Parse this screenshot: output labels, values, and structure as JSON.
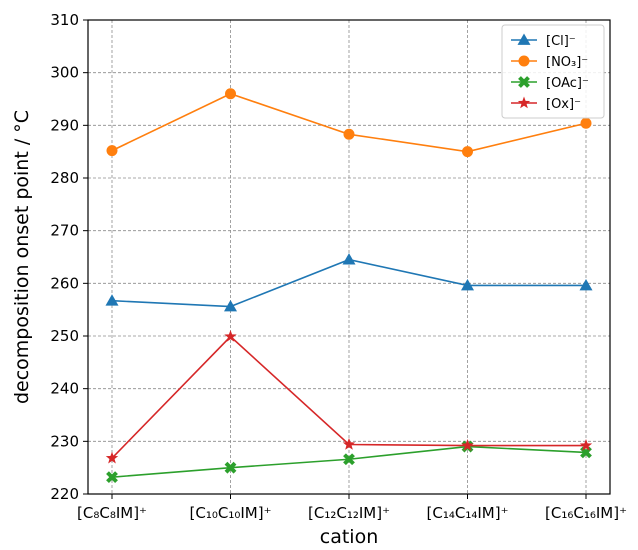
{
  "chart_data": {
    "type": "line",
    "xlabel": "cation",
    "ylabel": "decomposition onset point / °C",
    "categories": [
      "[C₈C₈IM]⁺",
      "[C₁₀C₁₀IM]⁺",
      "[C₁₂C₁₂IM]⁺",
      "[C₁₄C₁₄IM]⁺",
      "[C₁₆C₁₆IM]⁺"
    ],
    "ylim": [
      220,
      310
    ],
    "yticks": [
      220,
      230,
      240,
      250,
      260,
      270,
      280,
      290,
      300,
      310
    ],
    "grid": true,
    "legend_position": "top-right",
    "series": [
      {
        "name": "[Cl]⁻",
        "color": "#1f77b4",
        "marker": "triangle",
        "values": [
          256.7,
          255.6,
          264.5,
          259.6,
          259.6
        ]
      },
      {
        "name": "[NO₃]⁻",
        "color": "#ff7f0e",
        "marker": "circle",
        "values": [
          285.2,
          296.0,
          288.3,
          285.0,
          290.4
        ]
      },
      {
        "name": "[OAc]⁻",
        "color": "#2ca02c",
        "marker": "x",
        "values": [
          223.2,
          225.0,
          226.6,
          229.0,
          227.9
        ]
      },
      {
        "name": "[Ox]⁻",
        "color": "#d62728",
        "marker": "star",
        "values": [
          226.8,
          249.9,
          229.4,
          229.2,
          229.2
        ]
      }
    ]
  }
}
